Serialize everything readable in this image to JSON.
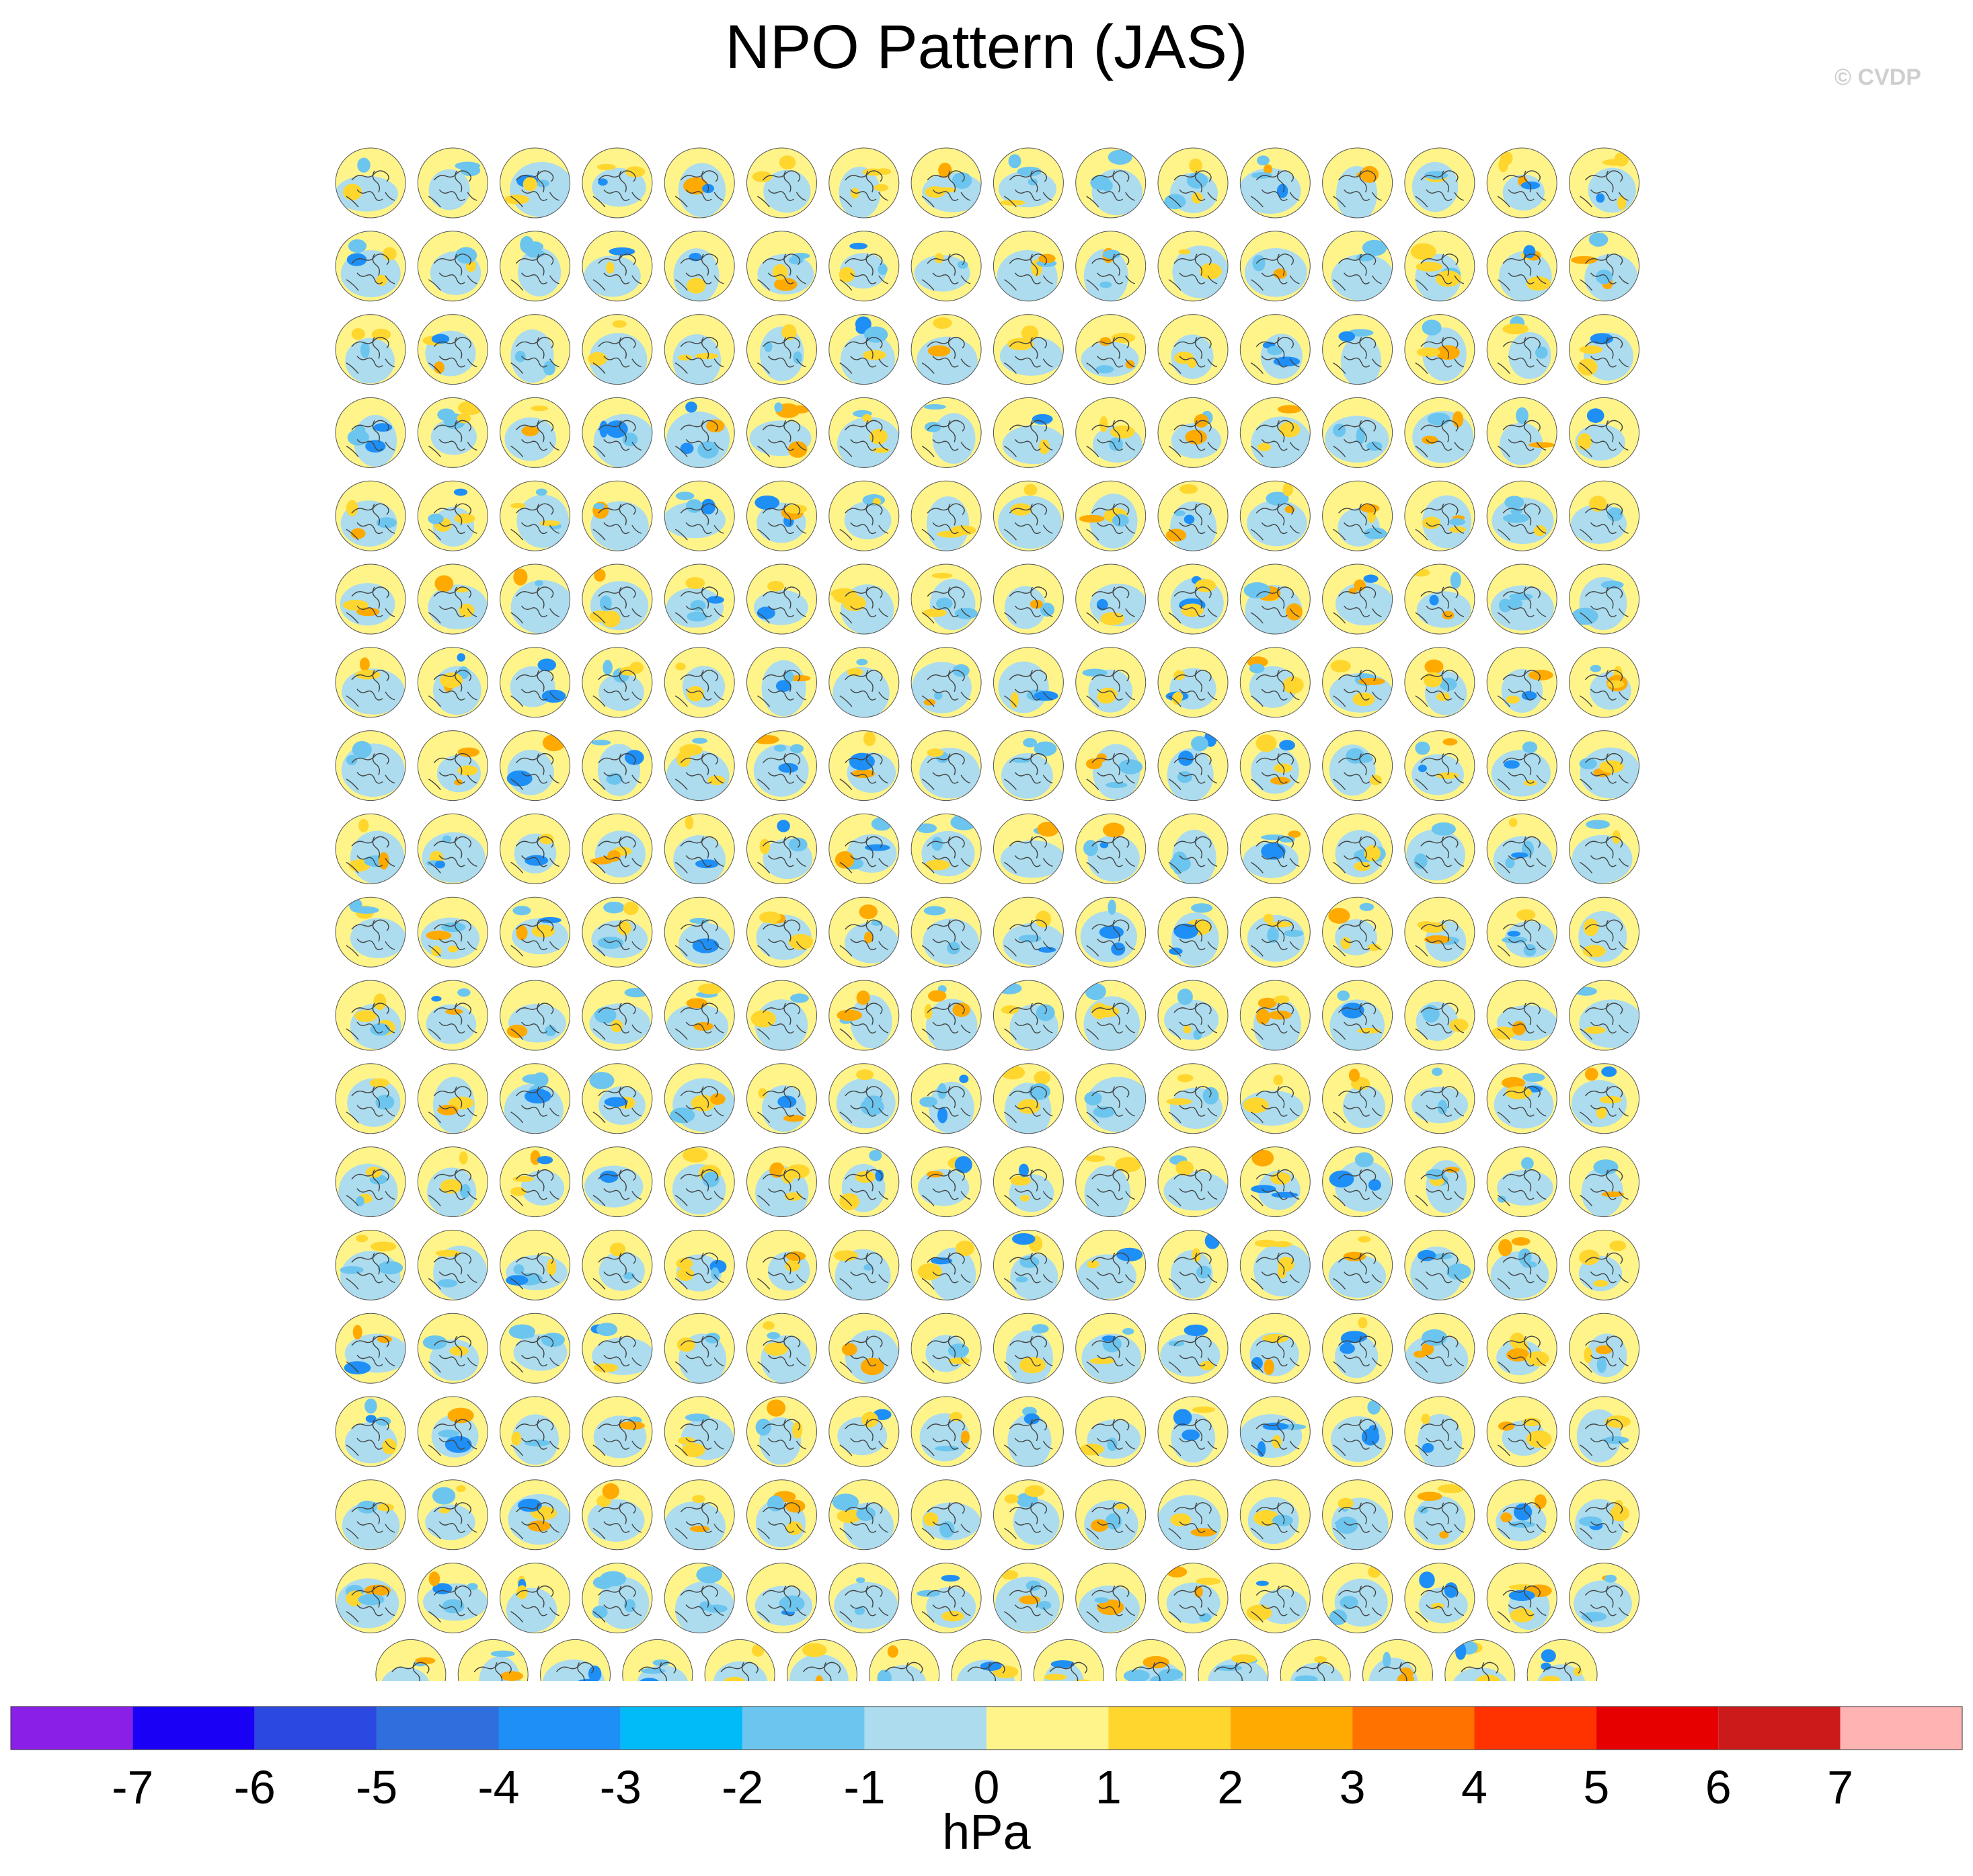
{
  "title": "NPO Pattern (JAS)",
  "watermark": "© CVDP",
  "chart_data": {
    "type": "heatmap",
    "title": "NPO Pattern (JAS)",
    "description_units": "hPa",
    "panel_grid": {
      "rows_full": 18,
      "cols_full": 16,
      "last_row_count": 15
    },
    "colorbar": {
      "label": "hPa",
      "levels": [
        -7,
        -6,
        -5,
        -4,
        -3,
        -2,
        -1,
        0,
        1,
        2,
        3,
        4,
        5,
        6,
        7
      ],
      "colors": [
        "#8a1fe8",
        "#1a00f5",
        "#2b48e0",
        "#2f6fdd",
        "#1e8ff7",
        "#00bbf7",
        "#6cc5ef",
        "#acdcee",
        "#fff48a",
        "#ffd62e",
        "#ffaa00",
        "#ff7200",
        "#ff3300",
        "#e60000",
        "#cc1a1a",
        "#ffb3b3"
      ]
    }
  },
  "colors": {
    "land_outline": "#444444",
    "ocean_negative": "#acdcee",
    "positive": "#fff48a"
  }
}
